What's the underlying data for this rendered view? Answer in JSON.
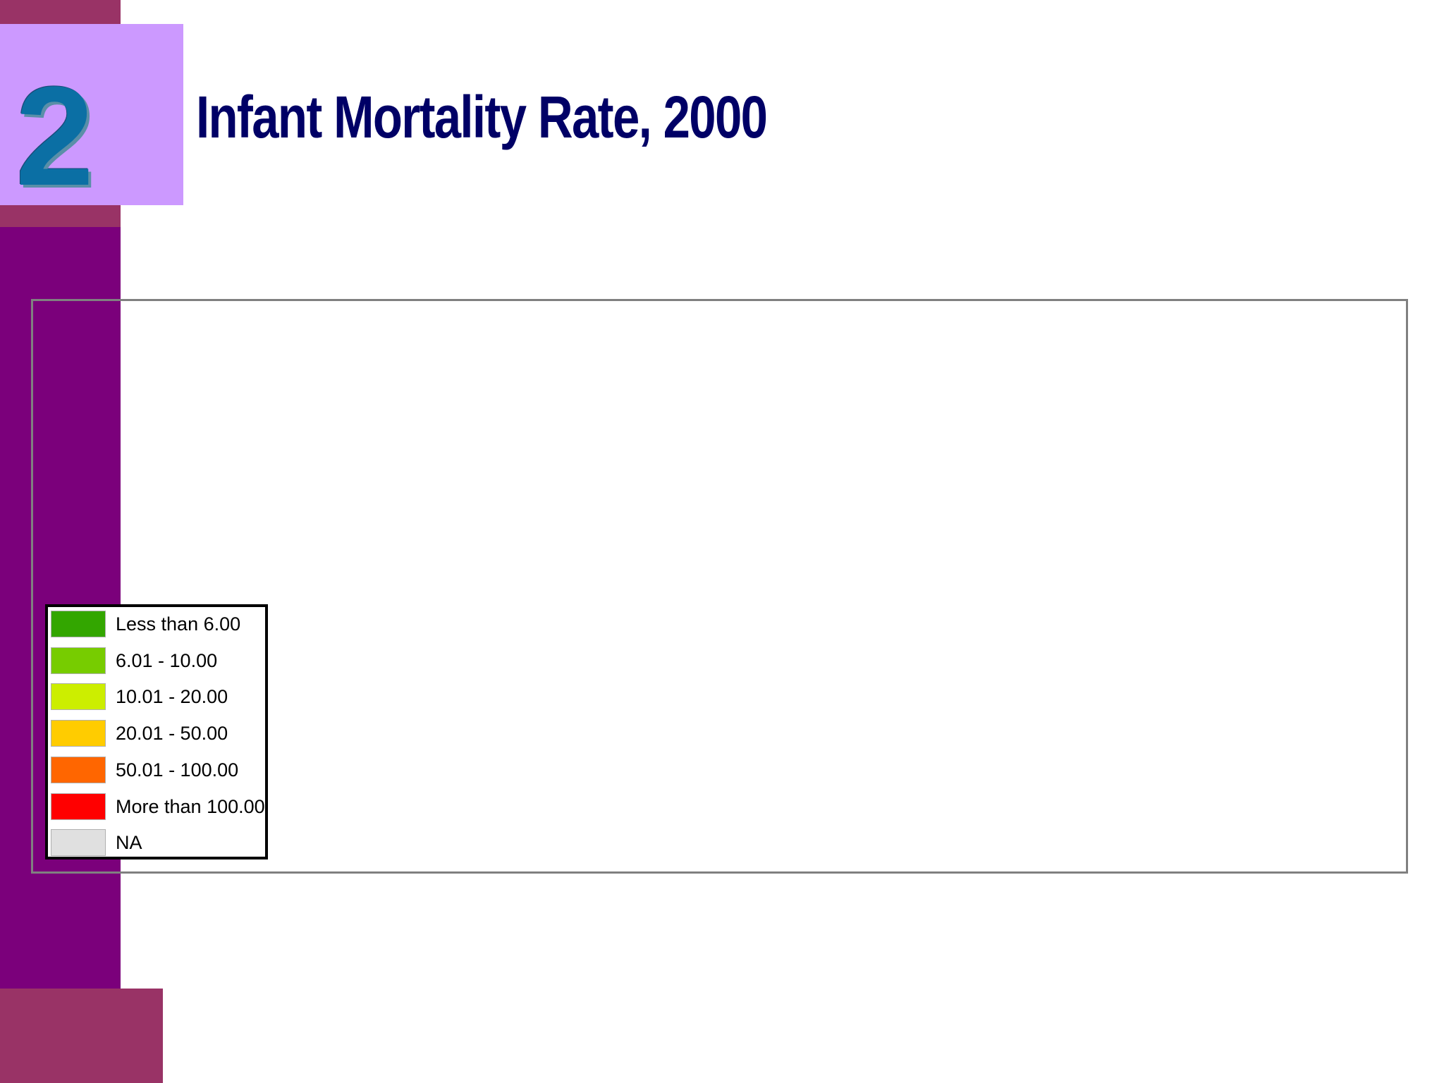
{
  "slide": {
    "number": "2",
    "title": "Infant Mortality Rate, 2000"
  },
  "legend": {
    "items": [
      {
        "label": "Less than 6.00",
        "color": "#33a600"
      },
      {
        "label": "6.01 - 10.00",
        "color": "#77cc00"
      },
      {
        "label": "10.01 - 20.00",
        "color": "#ccee00"
      },
      {
        "label": "20.01 - 50.00",
        "color": "#ffcc00"
      },
      {
        "label": "50.01 - 100.00",
        "color": "#ff6600"
      },
      {
        "label": "More than 100.00",
        "color": "#ff0000"
      },
      {
        "label": "NA",
        "color": "#e0e0e0"
      }
    ]
  },
  "colors": {
    "sidebar": "#7b007b",
    "accent_block": "#993366",
    "number_box": "#cc99ff",
    "title": "#000066"
  }
}
